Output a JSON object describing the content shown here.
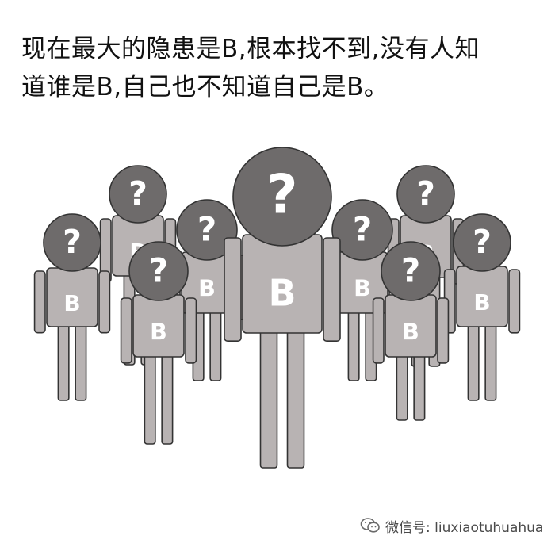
{
  "caption": {
    "line1": "现在最大的隐患是B,根本找不到,没有人知",
    "line2": "道谁是B,自己也不知道自己是B。"
  },
  "figure": {
    "head_glyph": "?",
    "shirt_letter": "B"
  },
  "watermark": {
    "icon": "wechat-icon",
    "text": "微信号: liuxiaotuhuahua"
  },
  "colors": {
    "head": "#6e6b6b",
    "body": "#b8b3b3",
    "outline": "#333333",
    "glyph": "#ffffff"
  }
}
